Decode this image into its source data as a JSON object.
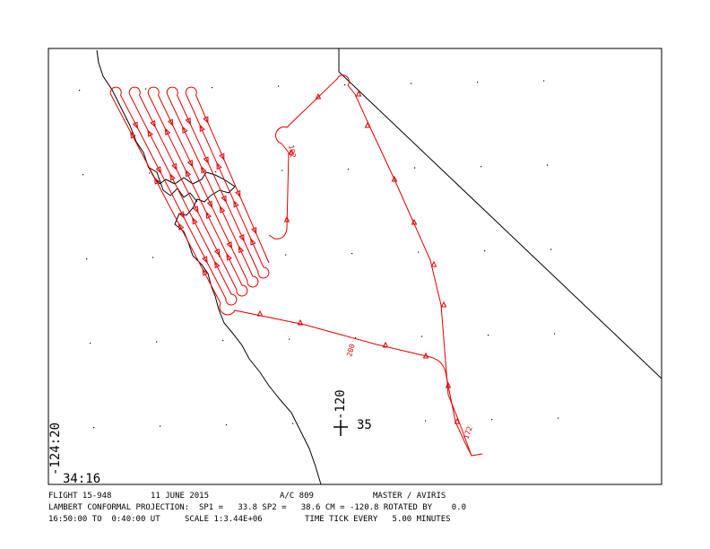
{
  "map": {
    "corner_lon": "-124:20",
    "corner_lat": "34:16",
    "cross_lon": "-120",
    "cross_lat": "35",
    "track_labels": [
      "200",
      "172",
      "192"
    ],
    "footer": {
      "flight": "FLIGHT 15-948",
      "date": "11 JUNE 2015",
      "aircraft": "A/C 809",
      "instrument": "MASTER / AVIRIS",
      "projection": "LAMBERT CONFORMAL PROJECTION:  SP1 =   33.8 SP2 =   38.6 CM = -120.8 ROTATED BY    0.0",
      "time_range": "16:50:00 TO  0:40:00 UT",
      "scale": "SCALE 1:3.44E+06",
      "time_tick": "TIME TICK EVERY   5.00 MINUTES"
    }
  }
}
